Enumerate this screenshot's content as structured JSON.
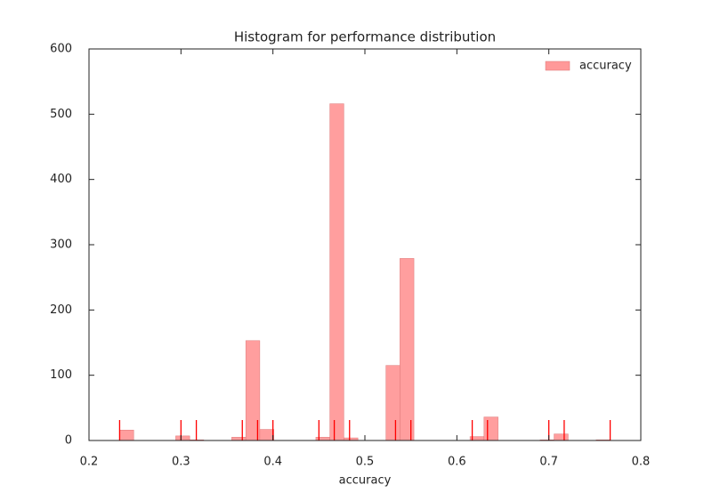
{
  "chart_data": {
    "type": "histogram",
    "title": "Histogram for performance distribution",
    "x_label": "accuracy",
    "bins": [
      0.2333,
      0.2486,
      0.2638,
      0.279,
      0.2943,
      0.3095,
      0.3248,
      0.34,
      0.3552,
      0.3705,
      0.3857,
      0.401,
      0.4162,
      0.4314,
      0.4467,
      0.4619,
      0.4771,
      0.4924,
      0.5076,
      0.5229,
      0.5381,
      0.5533,
      0.5686,
      0.5838,
      0.599,
      0.6143,
      0.6295,
      0.6448,
      0.66,
      0.6752,
      0.6905,
      0.7057,
      0.721,
      0.7362,
      0.7514,
      0.7667
    ],
    "series": [
      {
        "name": "accuracy",
        "color": "#ff9999",
        "values": [
          16,
          0,
          0,
          0,
          7,
          1,
          0,
          0,
          5,
          153,
          17,
          0,
          0,
          0,
          5,
          516,
          4,
          0,
          0,
          115,
          279,
          0,
          0,
          0,
          0,
          6,
          36,
          0,
          0,
          0,
          1,
          10,
          0,
          0,
          1
        ]
      }
    ],
    "rug": {
      "color": "#ff0000",
      "x": [
        0.2333,
        0.3,
        0.3167,
        0.3667,
        0.3833,
        0.4,
        0.45,
        0.4667,
        0.4833,
        0.5333,
        0.55,
        0.6167,
        0.6333,
        0.7,
        0.7167,
        0.7667
      ]
    },
    "xlim": [
      0.2,
      0.8
    ],
    "xticks": [
      0.2,
      0.3,
      0.4,
      0.5,
      0.6,
      0.7,
      0.8
    ],
    "ylim": [
      0,
      600
    ],
    "yticks": [
      0,
      100,
      200,
      300,
      400,
      500,
      600
    ],
    "legend": "upper right"
  }
}
